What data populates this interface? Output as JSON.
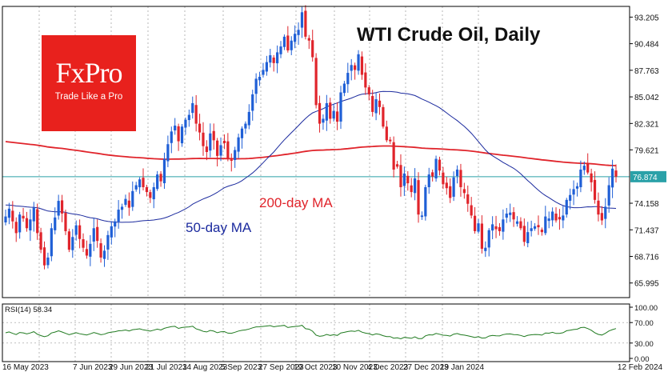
{
  "title": "WTI Crude Oil, Daily",
  "brand": {
    "name": "FxPro",
    "tagline": "Trade Like a Pro"
  },
  "colors": {
    "bull": "#1f5fd6",
    "bear": "#e0242b",
    "ma50": "#1b2a9e",
    "ma200": "#e0242b",
    "current_line": "#2aa1a8",
    "price_badge": "#2aa1a8",
    "rsi": "#1f7a1f",
    "logo_bg": "#e8211d"
  },
  "chart_data": {
    "type": "candlestick",
    "title": "WTI Crude Oil, Daily",
    "x_ticks": [
      "16 May 2023",
      "7 Jun 2023",
      "29 Jun 2023",
      "21 Jul 2023",
      "14 Aug 2023",
      "5 Sep 2023",
      "27 Sep 2023",
      "19 Oct 2023",
      "10 Nov 2023",
      "4 Dec 2023",
      "27 Dec 2023",
      "19 Jan 2024",
      "12 Feb 2024"
    ],
    "y_ticks": [
      65.995,
      68.716,
      71.437,
      74.158,
      76.874,
      79.621,
      82.321,
      85.042,
      87.763,
      90.484,
      93.205
    ],
    "y_tick_labels": [
      "65.995",
      "68.716",
      "71.437",
      "74.158",
      "79.621",
      "82.321",
      "85.042",
      "87.763",
      "90.484",
      "93.205"
    ],
    "ylim": [
      64.5,
      94.3
    ],
    "current_price": "76.874",
    "series_close": [
      72.8,
      73.6,
      72.3,
      71.1,
      73.0,
      72.6,
      71.6,
      72.5,
      73.7,
      71.1,
      69.4,
      67.8,
      68.6,
      71.6,
      72.7,
      74.4,
      73.1,
      71.3,
      69.4,
      70.7,
      71.9,
      70.5,
      69.6,
      68.8,
      70.0,
      71.6,
      70.3,
      68.6,
      69.3,
      70.9,
      71.8,
      72.3,
      73.5,
      73.8,
      74.6,
      73.7,
      75.4,
      76.0,
      76.6,
      75.8,
      75.3,
      74.7,
      75.8,
      77.1,
      76.4,
      78.7,
      80.2,
      81.5,
      82.1,
      80.5,
      82.0,
      82.7,
      83.2,
      84.4,
      82.3,
      81.4,
      80.0,
      79.4,
      81.3,
      80.6,
      79.0,
      80.1,
      80.3,
      78.7,
      78.5,
      79.6,
      80.9,
      81.8,
      82.3,
      83.5,
      85.3,
      86.9,
      87.1,
      87.8,
      88.6,
      89.3,
      88.5,
      89.6,
      90.2,
      91.2,
      89.8,
      90.8,
      91.5,
      91.9,
      93.7,
      91.2,
      90.8,
      89.1,
      84.2,
      82.3,
      82.8,
      84.4,
      82.8,
      83.6,
      82.5,
      85.5,
      86.4,
      87.5,
      88.3,
      87.8,
      89.4,
      87.3,
      86.0,
      85.3,
      83.5,
      84.8,
      84.0,
      82.0,
      80.6,
      80.5,
      77.6,
      77.9,
      75.8,
      77.2,
      76.2,
      75.3,
      76.7,
      73.0,
      72.9,
      75.8,
      77.1,
      76.9,
      78.7,
      77.5,
      76.1,
      75.7,
      74.7,
      76.8,
      77.6,
      75.8,
      75.2,
      74.1,
      72.9,
      71.3,
      72.1,
      69.5,
      69.6,
      71.4,
      72.0,
      71.5,
      71.3,
      72.5,
      73.1,
      73.2,
      72.5,
      72.3,
      71.6,
      70.2,
      71.2,
      71.6,
      71.8,
      71.7,
      71.2,
      72.8,
      72.6,
      73.3,
      72.4,
      72.5,
      72.9,
      74.5,
      75.0,
      75.6,
      75.9,
      77.6,
      78.0,
      77.3,
      76.3,
      74.5,
      73.0,
      72.4,
      73.8,
      76.0,
      77.7,
      76.874
    ],
    "series": [
      {
        "name": "50-day MA"
      },
      {
        "name": "200-day MA"
      }
    ],
    "indicator": {
      "label": "RSI(14) 58.34",
      "value": 58.34,
      "ticks": [
        "100.00",
        "70.00",
        "30.00",
        "0.00"
      ],
      "levels": [
        70,
        30
      ]
    }
  },
  "annotations": {
    "ma50": "50-day MA",
    "ma200": "200-day MA"
  }
}
